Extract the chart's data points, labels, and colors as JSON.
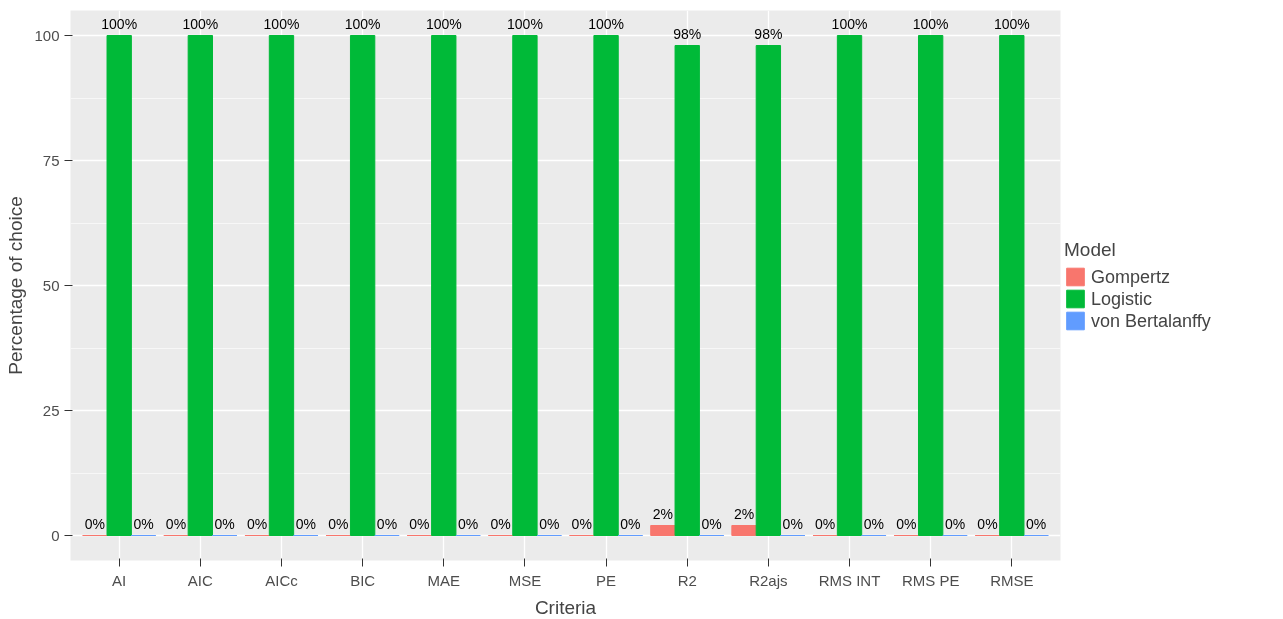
{
  "chart_data": {
    "type": "bar",
    "xlabel": "Criteria",
    "ylabel": "Percentage of choice",
    "legend_title": "Model",
    "categories": [
      "AI",
      "AIC",
      "AICc",
      "BIC",
      "MAE",
      "MSE",
      "PE",
      "R2",
      "R2ajs",
      "RMS INT",
      "RMS PE",
      "RMSE"
    ],
    "series": [
      {
        "name": "Gompertz",
        "color": "#f8766d",
        "values": [
          0,
          0,
          0,
          0,
          0,
          0,
          0,
          2,
          2,
          0,
          0,
          0
        ],
        "value_labels": [
          "0%",
          "0%",
          "0%",
          "0%",
          "0%",
          "0%",
          "0%",
          "2%",
          "2%",
          "0%",
          "0%",
          "0%"
        ]
      },
      {
        "name": "Logistic",
        "color": "#00ba38",
        "values": [
          100,
          100,
          100,
          100,
          100,
          100,
          100,
          98,
          98,
          100,
          100,
          100
        ],
        "value_labels": [
          "100%",
          "100%",
          "100%",
          "100%",
          "100%",
          "100%",
          "100%",
          "98%",
          "98%",
          "100%",
          "100%",
          "100%"
        ]
      },
      {
        "name": "von Bertalanffy",
        "color": "#619cff",
        "values": [
          0,
          0,
          0,
          0,
          0,
          0,
          0,
          0,
          0,
          0,
          0,
          0
        ],
        "value_labels": [
          "0%",
          "0%",
          "0%",
          "0%",
          "0%",
          "0%",
          "0%",
          "0%",
          "0%",
          "0%",
          "0%",
          "0%"
        ]
      }
    ],
    "ylim": [
      -5,
      105
    ],
    "yticks": [
      0,
      25,
      50,
      75,
      100
    ],
    "grid": true,
    "legend": "right"
  }
}
